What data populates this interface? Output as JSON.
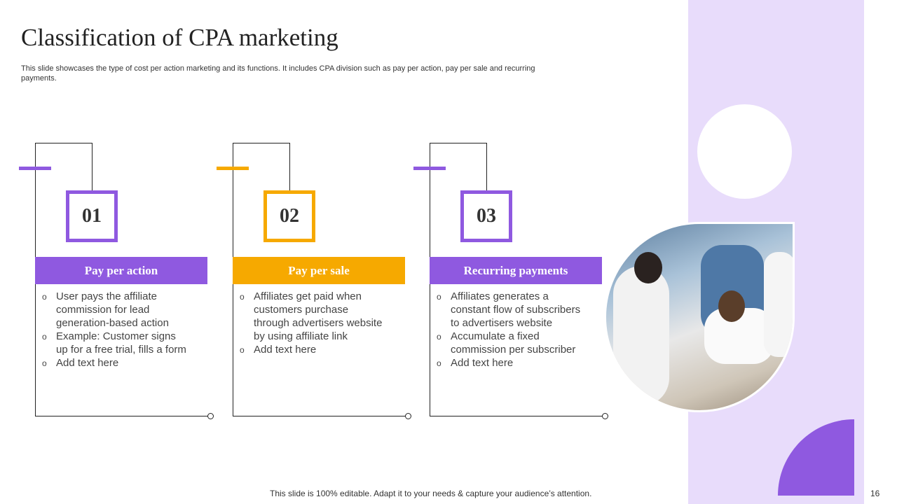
{
  "title": "Classification  of CPA marketing",
  "subtitle": "This slide showcases the type of cost per action marketing and its functions. It includes CPA division such as pay per action, pay per sale and recurring payments.",
  "colors": {
    "purple": "#8f59e0",
    "orange": "#f6a900",
    "lavender": "#e8dcfb"
  },
  "cards": [
    {
      "number": "01",
      "heading": "Pay per action",
      "accent": "#8f59e0",
      "bullets": [
        "User pays the affiliate commission for lead generation-based action",
        "Example:  Customer signs up for a free trial, fills a form",
        "Add text here"
      ]
    },
    {
      "number": "02",
      "heading": "Pay per sale",
      "accent": "#f6a900",
      "bullets": [
        "Affiliates get paid when customers purchase through advertisers website by using affiliate link",
        "Add text here"
      ]
    },
    {
      "number": "03",
      "heading": "Recurring payments",
      "accent": "#8f59e0",
      "bullets": [
        "Affiliates generates a constant flow of subscribers to advertisers website",
        "Accumulate  a fixed commission per subscriber",
        "Add text here"
      ]
    }
  ],
  "footer": "This slide is 100% editable. Adapt it to your needs & capture your audience’s attention.",
  "page_number": "16"
}
